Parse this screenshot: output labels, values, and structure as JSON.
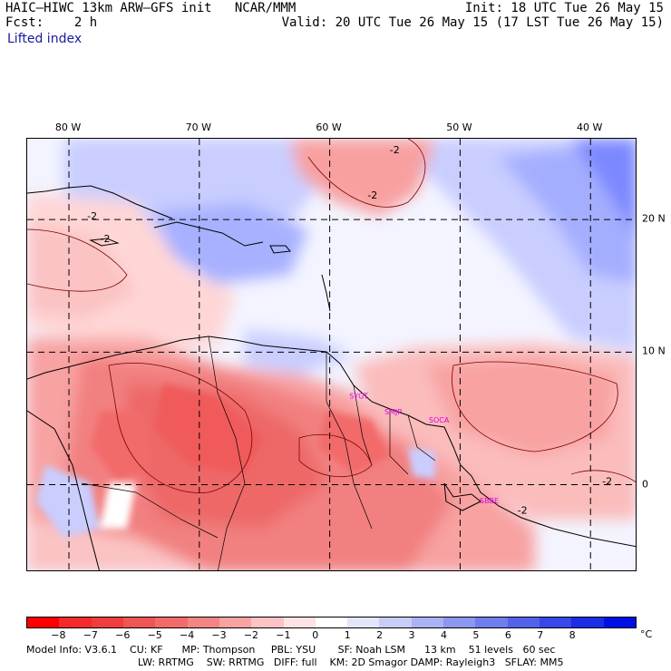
{
  "header": {
    "model_title": "HAIC–HIWC 13km ARW–GFS init   NCAR/MMM",
    "fcst": "Fcst:    2 h",
    "init": "Init: 18 UTC Tue 26 May 15",
    "valid": "Valid: 20 UTC Tue 26 May 15 (17 LST Tue 26 May 15)"
  },
  "field_name": "Lifted index",
  "map": {
    "lon_labels": [
      {
        "text": "80 W",
        "lon": -80
      },
      {
        "text": "70 W",
        "lon": -70
      },
      {
        "text": "60 W",
        "lon": -60
      },
      {
        "text": "50 W",
        "lon": -50
      },
      {
        "text": "40 W",
        "lon": -40
      }
    ],
    "lat_labels": [
      {
        "text": "20 N",
        "lat": 20
      },
      {
        "text": "10 N",
        "lat": 10
      },
      {
        "text": "0",
        "lat": 0
      }
    ],
    "lon_range": [
      -83.2,
      -36.4
    ],
    "lat_range": [
      -6.6,
      26.1
    ],
    "contour_labels": [
      {
        "text": "-2",
        "lon": -55.4,
        "lat": 25.0
      },
      {
        "text": "-2",
        "lon": -57.1,
        "lat": 21.6
      },
      {
        "text": "-2",
        "lon": -78.6,
        "lat": 20.0
      },
      {
        "text": "-2",
        "lon": -77.6,
        "lat": 18.3
      },
      {
        "text": "-2",
        "lon": -39.1,
        "lat": 0.0
      },
      {
        "text": "-2",
        "lon": -45.6,
        "lat": -2.2
      }
    ],
    "stations": [
      {
        "text": "SYGT",
        "lon": -58.5,
        "lat": 6.5
      },
      {
        "text": "SMJP",
        "lon": -55.8,
        "lat": 5.3
      },
      {
        "text": "SOCA",
        "lon": -52.4,
        "lat": 4.7
      },
      {
        "text": "SBBE",
        "lon": -48.5,
        "lat": -1.4
      }
    ]
  },
  "colorbar": {
    "labels": [
      "−8",
      "−7",
      "−6",
      "−5",
      "−4",
      "−3",
      "−2",
      "−1",
      "0",
      "1",
      "2",
      "3",
      "4",
      "5",
      "6",
      "7",
      "8"
    ],
    "unit": "°C",
    "colors": [
      "#ff0000",
      "#f52a2a",
      "#f03c3c",
      "#ee5555",
      "#f26b6b",
      "#f58585",
      "#f8a2a2",
      "#fbc3c3",
      "#fde3e3",
      "#ffffff",
      "#e3e6fb",
      "#c8cdf8",
      "#aab2f4",
      "#8d97f0",
      "#707ded",
      "#5462ea",
      "#3747e8",
      "#1a2ce6",
      "#0010e4"
    ]
  },
  "model_info": {
    "line1": "Model Info: V3.6.1    CU: KF      MP: Thompson     PBL: YSU       SF: Noah LSM      13 km    51 levels   60 sec",
    "line2": "LW: RRTMG    SW: RRTMG   DIFF: full    KM: 2D Smagor DAMP: Rayleigh3   SFLAY: MM5"
  }
}
